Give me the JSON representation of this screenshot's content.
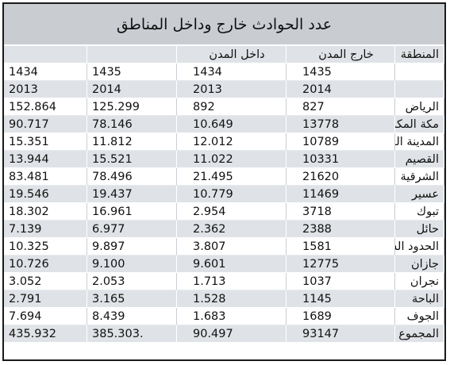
{
  "title": "عدد الحوادث خارج وداخل المناطق",
  "headers": {
    "col1": "",
    "col2": "",
    "col3": "داخل المدن",
    "col4": "خارج المدن",
    "col5": "المنطقة"
  },
  "hijri_row": {
    "col1": "1434",
    "col2": "1435",
    "col3": "1434",
    "col4": "1435",
    "col5": ""
  },
  "greg_row": {
    "col1": "2013",
    "col2": "2014",
    "col3": "2013",
    "col4": "2014",
    "col5": ""
  },
  "rows": [
    {
      "region": "الرياض",
      "c4": "827",
      "c3": "892",
      "c2": "125.299",
      "c1": "152.864"
    },
    {
      "region": "مكة المكرمة",
      "c4": "13778",
      "c3": "10.649",
      "c2": "78.146",
      "c1": "90.717"
    },
    {
      "region": "المدينة المنورة",
      "c4": "10789",
      "c3": "12.012",
      "c2": "11.812",
      "c1": "15.351"
    },
    {
      "region": "القصيم",
      "c4": "10331",
      "c3": "11.022",
      "c2": "15.521",
      "c1": "13.944"
    },
    {
      "region": "الشرقية",
      "c4": "21620",
      "c3": "21.495",
      "c2": "78.496",
      "c1": "83.481"
    },
    {
      "region": "عسير",
      "c4": "11469",
      "c3": "10.779",
      "c2": "19.437",
      "c1": "19.546"
    },
    {
      "region": "تبوك",
      "c4": "3718",
      "c3": "2.954",
      "c2": "16.961",
      "c1": "18.302"
    },
    {
      "region": "حائل",
      "c4": "2388",
      "c3": "2.362",
      "c2": "6.977",
      "c1": "7.139"
    },
    {
      "region": "الحدود الشمالية",
      "c4": "1581",
      "c3": "3.807",
      "c2": "9.897",
      "c1": "10.325"
    },
    {
      "region": "جازان",
      "c4": "12775",
      "c3": "9.601",
      "c2": "9.100",
      "c1": "10.726"
    },
    {
      "region": "نجران",
      "c4": "1037",
      "c3": "1.713",
      "c2": "2.053",
      "c1": "3.052"
    },
    {
      "region": "الباحة",
      "c4": "1145",
      "c3": "1.528",
      "c2": "3.165",
      "c1": "2.791"
    },
    {
      "region": "الجوف",
      "c4": "1689",
      "c3": "1.683",
      "c2": "8.439",
      "c1": "7.694"
    },
    {
      "region": "المجموع",
      "c4": "93147",
      "c3": "90.497",
      "c2": "385.303.",
      "c1": "435.932"
    }
  ]
}
